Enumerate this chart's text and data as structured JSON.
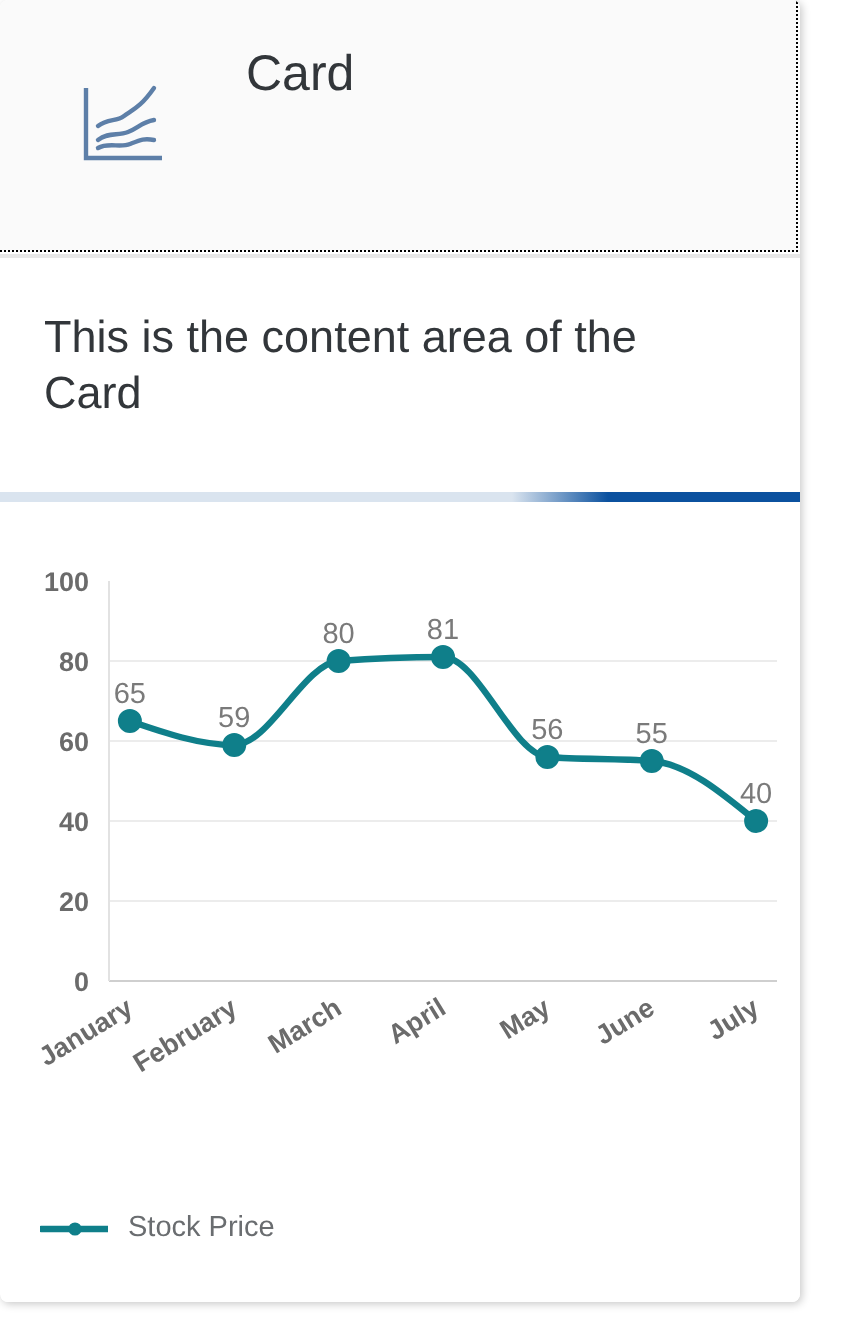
{
  "chart_data": {
    "type": "line",
    "title": "Card",
    "subtitle": "This is the content area of the Card",
    "categories": [
      "January",
      "February",
      "March",
      "April",
      "May",
      "June",
      "July"
    ],
    "series": [
      {
        "name": "Stock Price",
        "color": "#0f7f8a",
        "values": [
          65,
          59,
          80,
          81,
          56,
          55,
          40
        ]
      }
    ],
    "ylim": [
      0,
      100
    ],
    "yticks": [
      0,
      20,
      40,
      60,
      80,
      100
    ],
    "grid": "y",
    "legend": "bottom left",
    "marker": "circle",
    "data_labels": true
  }
}
